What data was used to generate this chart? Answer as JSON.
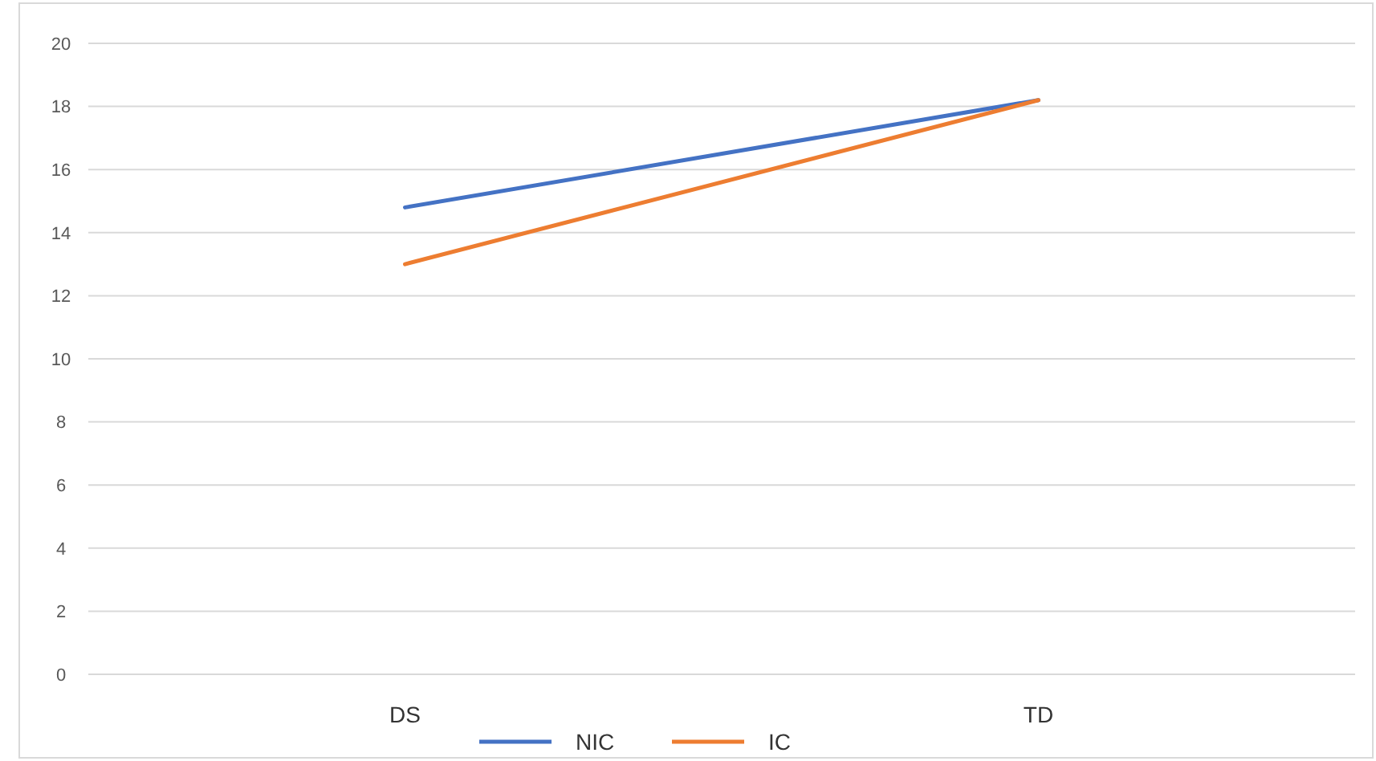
{
  "chart_data": {
    "type": "line",
    "categories": [
      "DS",
      "TD"
    ],
    "series": [
      {
        "name": "NIC",
        "color": "#4472c4",
        "values": [
          14.8,
          18.2
        ]
      },
      {
        "name": "IC",
        "color": "#ed7d31",
        "values": [
          13,
          18.2
        ]
      }
    ],
    "ylim": [
      0,
      20
    ],
    "yticks": [
      0,
      2,
      4,
      6,
      8,
      10,
      12,
      14,
      16,
      18,
      20
    ],
    "grid": "y",
    "legend": "bottom",
    "marker": "none",
    "line_style": "solid"
  }
}
